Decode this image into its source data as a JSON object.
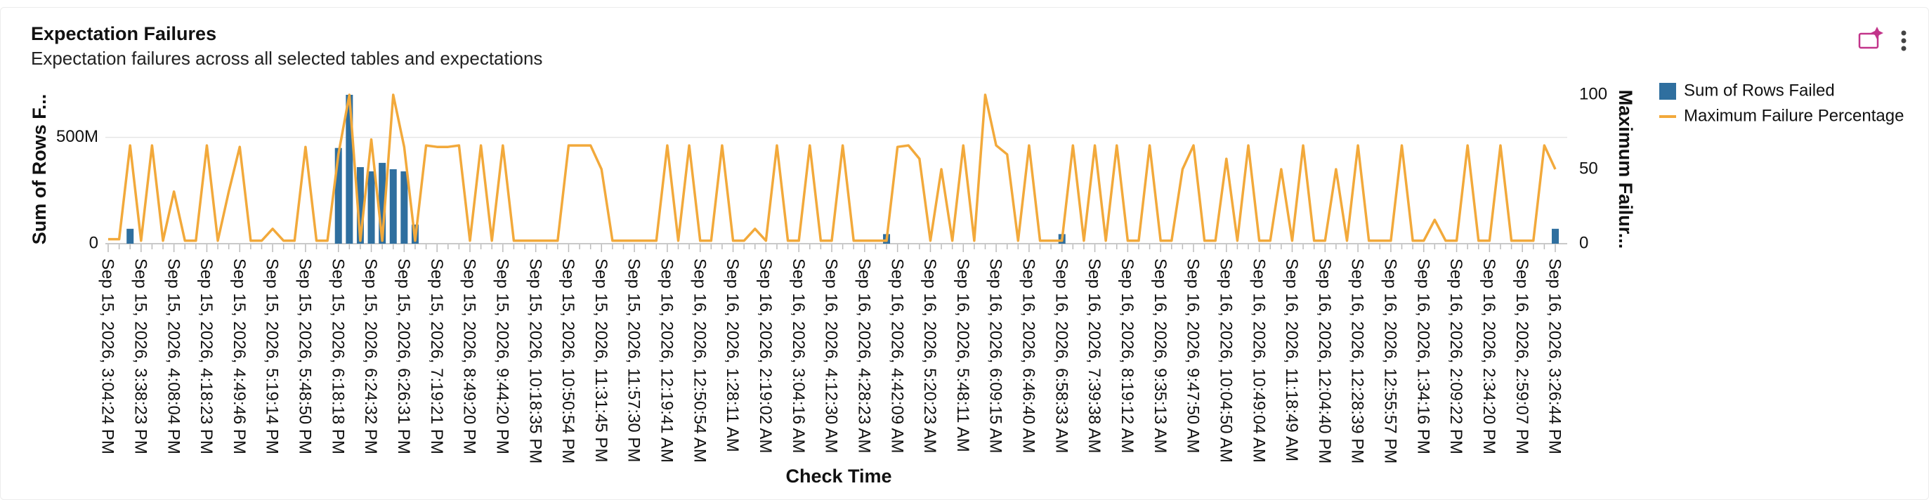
{
  "chart_data": {
    "type": "combo",
    "title": "Expectation Failures",
    "subtitle": "Expectation failures across all selected tables and expectations",
    "x_label": "Check Time",
    "y_label": "Sum of Rows F...",
    "y2_label": "Maximum Failur...",
    "ylim": [
      0,
      700000000
    ],
    "yticks": [
      0,
      {
        "value": 500000000,
        "label": "500M"
      }
    ],
    "y2lim": [
      0,
      100
    ],
    "y2ticks": [
      0,
      50,
      100
    ],
    "grid": true,
    "legend": "right",
    "categories": [
      "Sep 15, 2026, 3:04:24 PM",
      null,
      null,
      "Sep 15, 2026, 3:38:23 PM",
      null,
      null,
      "Sep 15, 2026, 4:08:04 PM",
      null,
      null,
      "Sep 15, 2026, 4:18:23 PM",
      null,
      null,
      "Sep 15, 2026, 4:49:46 PM",
      null,
      null,
      "Sep 15, 2026, 5:19:14 PM",
      null,
      null,
      "Sep 15, 2026, 5:48:50 PM",
      null,
      null,
      "Sep 15, 2026, 6:18:18 PM",
      null,
      null,
      "Sep 15, 2026, 6:24:32 PM",
      null,
      null,
      "Sep 15, 2026, 6:26:31 PM",
      null,
      null,
      "Sep 15, 2026, 7:19:21 PM",
      null,
      null,
      "Sep 15, 2026, 8:49:20 PM",
      null,
      null,
      "Sep 15, 2026, 9:44:20 PM",
      null,
      null,
      "Sep 15, 2026, 10:18:35 PM",
      null,
      null,
      "Sep 15, 2026, 10:50:54 PM",
      null,
      null,
      "Sep 15, 2026, 11:31:45 PM",
      null,
      null,
      "Sep 15, 2026, 11:57:30 PM",
      null,
      null,
      "Sep 16, 2026, 12:19:41 AM",
      null,
      null,
      "Sep 16, 2026, 12:50:54 AM",
      null,
      null,
      "Sep 16, 2026, 1:28:11 AM",
      null,
      null,
      "Sep 16, 2026, 2:19:02 AM",
      null,
      null,
      "Sep 16, 2026, 3:04:16 AM",
      null,
      null,
      "Sep 16, 2026, 4:12:30 AM",
      null,
      null,
      "Sep 16, 2026, 4:28:23 AM",
      null,
      null,
      "Sep 16, 2026, 4:42:09 AM",
      null,
      null,
      "Sep 16, 2026, 5:20:23 AM",
      null,
      null,
      "Sep 16, 2026, 5:48:11 AM",
      null,
      null,
      "Sep 16, 2026, 6:09:15 AM",
      null,
      null,
      "Sep 16, 2026, 6:46:40 AM",
      null,
      null,
      "Sep 16, 2026, 6:58:33 AM",
      null,
      null,
      "Sep 16, 2026, 7:39:38 AM",
      null,
      null,
      "Sep 16, 2026, 8:19:12 AM",
      null,
      null,
      "Sep 16, 2026, 9:35:13 AM",
      null,
      null,
      "Sep 16, 2026, 9:47:50 AM",
      null,
      null,
      "Sep 16, 2026, 10:04:50 AM",
      null,
      null,
      "Sep 16, 2026, 10:49:04 AM",
      null,
      null,
      "Sep 16, 2026, 11:18:49 AM",
      null,
      null,
      "Sep 16, 2026, 12:04:40 PM",
      null,
      null,
      "Sep 16, 2026, 12:28:39 PM",
      null,
      null,
      "Sep 16, 2026, 12:55:57 PM",
      null,
      null,
      "Sep 16, 2026, 1:34:16 PM",
      null,
      null,
      "Sep 16, 2026, 2:09:22 PM",
      null,
      null,
      "Sep 16, 2026, 2:34:20 PM",
      null,
      null,
      "Sep 16, 2026, 2:59:07 PM",
      null,
      null,
      "Sep 16, 2026, 3:26:44 PM"
    ],
    "series": [
      {
        "name": "Sum of Rows Failed",
        "kind": "bar",
        "axis": "y",
        "color": "#2f6f9f",
        "values": [
          0,
          0,
          70000000,
          0,
          0,
          0,
          0,
          0,
          0,
          0,
          0,
          0,
          0,
          0,
          0,
          0,
          0,
          0,
          0,
          0,
          0,
          450000000,
          700000000,
          360000000,
          340000000,
          380000000,
          350000000,
          340000000,
          90000000,
          0,
          0,
          0,
          0,
          0,
          0,
          0,
          0,
          0,
          0,
          0,
          0,
          0,
          0,
          0,
          0,
          0,
          0,
          0,
          0,
          0,
          0,
          0,
          0,
          0,
          0,
          0,
          0,
          0,
          0,
          0,
          0,
          0,
          0,
          0,
          0,
          0,
          0,
          0,
          0,
          0,
          0,
          45000000,
          0,
          0,
          0,
          0,
          0,
          0,
          0,
          0,
          0,
          0,
          0,
          0,
          0,
          0,
          0,
          45000000,
          0,
          0,
          0,
          0,
          0,
          0,
          0,
          0,
          0,
          0,
          0,
          0,
          0,
          0,
          0,
          0,
          0,
          0,
          0,
          0,
          0,
          0,
          0,
          0,
          0,
          0,
          0,
          0,
          0,
          0,
          0,
          0,
          0,
          0,
          0,
          0,
          0,
          0,
          0,
          0,
          0,
          0,
          0,
          0,
          70000000
        ]
      },
      {
        "name": "Maximum Failure Percentage",
        "kind": "line",
        "axis": "y2",
        "color": "#f2a93b",
        "values": [
          3,
          3,
          66,
          2,
          66,
          2,
          35,
          2,
          2,
          66,
          2,
          35,
          65,
          2,
          2,
          10,
          2,
          2,
          65,
          2,
          2,
          60,
          100,
          2,
          70,
          2,
          100,
          65,
          2,
          66,
          65,
          65,
          66,
          2,
          66,
          2,
          66,
          2,
          2,
          2,
          2,
          2,
          66,
          66,
          66,
          50,
          2,
          2,
          2,
          2,
          2,
          66,
          2,
          66,
          2,
          2,
          66,
          2,
          2,
          10,
          2,
          66,
          2,
          2,
          66,
          2,
          2,
          66,
          2,
          2,
          2,
          2,
          65,
          66,
          57,
          2,
          50,
          2,
          66,
          2,
          100,
          66,
          60,
          2,
          66,
          2,
          2,
          2,
          66,
          2,
          66,
          2,
          66,
          2,
          2,
          66,
          2,
          2,
          50,
          66,
          2,
          2,
          57,
          2,
          66,
          2,
          2,
          50,
          2,
          66,
          2,
          2,
          50,
          2,
          66,
          2,
          2,
          2,
          66,
          2,
          2,
          16,
          2,
          2,
          66,
          2,
          2,
          66,
          2,
          2,
          2,
          66,
          50
        ]
      }
    ]
  }
}
